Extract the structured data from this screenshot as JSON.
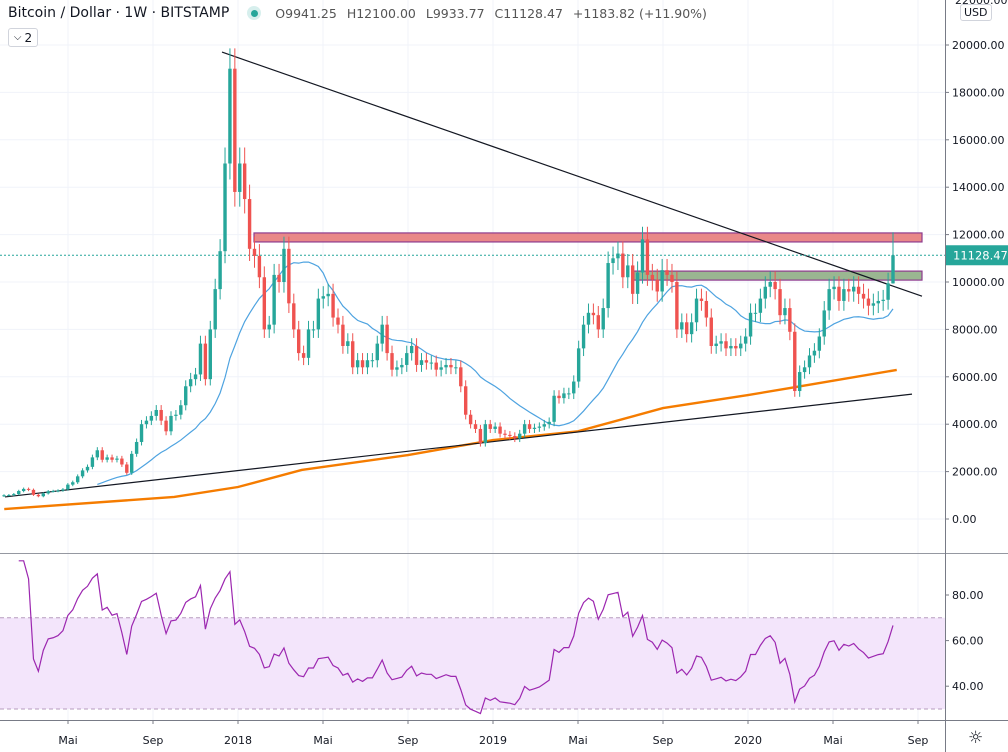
{
  "header": {
    "symbol_title": "Bitcoin / Dollar · 1W · BITSTAMP",
    "status_color": "#26a69a",
    "ohlc": {
      "open_label": "O",
      "open": "9941.25",
      "high_label": "H",
      "high": "12100.00",
      "low_label": "L",
      "low": "9933.77",
      "close_label": "C",
      "close": "11128.47",
      "change": "+1183.82 (+11.90%)"
    },
    "indicators_toggle": "2"
  },
  "price_axis": {
    "currency": "USD",
    "current_price_label": "11128.47",
    "top_partial_label": "22000.00"
  },
  "settings_icon": "sun-icon",
  "colors": {
    "up": "#26a69a",
    "down": "#ef5350",
    "sma": "#4ea3e0",
    "ma_long": "#f57c00",
    "trendline": "#131722",
    "resistance_zone": "#e57373",
    "support_zone": "#8fae85",
    "rsi": "#9c27b0",
    "rsi_band": "#f3e5fb"
  },
  "chart_data": [
    {
      "type": "candlestick",
      "interval": "1W",
      "ylim": [
        -800,
        22000
      ],
      "grid": true,
      "y_ticks": [
        "0.00",
        "2000.00",
        "4000.00",
        "6000.00",
        "8000.00",
        "10000.00",
        "12000.00",
        "14000.00",
        "16000.00",
        "18000.00",
        "20000.00"
      ],
      "x_ticks": [
        {
          "label": "Mai",
          "date": "2017-05"
        },
        {
          "label": "Sep",
          "date": "2017-09"
        },
        {
          "label": "2018",
          "date": "2018-01"
        },
        {
          "label": "Mai",
          "date": "2018-05"
        },
        {
          "label": "Sep",
          "date": "2018-09"
        },
        {
          "label": "2019",
          "date": "2019-01"
        },
        {
          "label": "Mai",
          "date": "2019-05"
        },
        {
          "label": "Sep",
          "date": "2019-09"
        },
        {
          "label": "2020",
          "date": "2020-01"
        },
        {
          "label": "Mai",
          "date": "2020-05"
        },
        {
          "label": "Sep",
          "date": "2020-09"
        }
      ],
      "weekly_closes": [
        1000,
        1010,
        1050,
        1180,
        1270,
        1230,
        1020,
        960,
        1080,
        1170,
        1180,
        1200,
        1250,
        1450,
        1550,
        1800,
        2050,
        2200,
        2600,
        2900,
        2500,
        2600,
        2500,
        2550,
        2300,
        1950,
        2750,
        3250,
        4000,
        4150,
        4350,
        4600,
        4150,
        3700,
        4350,
        4400,
        4800,
        5600,
        5900,
        6100,
        7400,
        5900,
        8000,
        9700,
        11300,
        15000,
        19000,
        13800,
        15000,
        13500,
        11400,
        11100,
        10200,
        8000,
        8200,
        10300,
        10000,
        11400,
        9100,
        8000,
        7000,
        6800,
        8000,
        8000,
        9300,
        9400,
        9500,
        8500,
        8200,
        7300,
        7500,
        6400,
        6700,
        6400,
        6700,
        6700,
        7400,
        8200,
        7000,
        6300,
        6400,
        6500,
        7000,
        7300,
        6500,
        6700,
        6600,
        6600,
        6300,
        6400,
        6500,
        6400,
        6400,
        5600,
        4400,
        4000,
        3800,
        3200,
        4000,
        3800,
        3900,
        3600,
        3550,
        3500,
        3400,
        3600,
        4000,
        3800,
        3850,
        3900,
        4000,
        4100,
        5200,
        5100,
        5300,
        5300,
        5800,
        7200,
        8200,
        8700,
        8600,
        8000,
        8900,
        10800,
        11000,
        11200,
        10200,
        10700,
        9500,
        10400,
        11800,
        10300,
        10100,
        9600,
        10500,
        10300,
        10000,
        8000,
        8300,
        7800,
        8300,
        9300,
        9200,
        8500,
        7300,
        7400,
        7500,
        7200,
        7300,
        7200,
        7400,
        7700,
        8700,
        8700,
        9300,
        9800,
        10000,
        9700,
        8600,
        8900,
        7900,
        5400,
        6200,
        6400,
        6900,
        7100,
        7700,
        8800,
        9700,
        9800,
        9200,
        9700,
        9600,
        9800,
        9500,
        9300,
        9000,
        9100,
        9200,
        9250,
        9945
      ],
      "last_candle": {
        "open": 9941.25,
        "high": 12100.0,
        "low": 9933.77,
        "close": 11128.47
      },
      "series": [
        {
          "kind": "sma",
          "period": 20
        },
        {
          "kind": "long_ma",
          "points": [
            {
              "date": "2017-02",
              "value": 420
            },
            {
              "date": "2017-10",
              "value": 930
            },
            {
              "date": "2018-01",
              "value": 1350
            },
            {
              "date": "2018-04",
              "value": 2070
            },
            {
              "date": "2018-09",
              "value": 2700
            },
            {
              "date": "2019-01",
              "value": 3330
            },
            {
              "date": "2019-05",
              "value": 3700
            },
            {
              "date": "2019-09",
              "value": 4680
            },
            {
              "date": "2020-01",
              "value": 5230
            },
            {
              "date": "2020-03",
              "value": 5530
            },
            {
              "date": "2020-08",
              "value": 6290
            }
          ]
        }
      ],
      "trendlines": [
        {
          "from": {
            "date": "2017-12",
            "value": 19700
          },
          "to": {
            "date": "2020-09",
            "value": 9400
          }
        },
        {
          "from": {
            "date": "2017-02",
            "value": 930
          },
          "to": {
            "date": "2020-09",
            "value": 5270
          }
        }
      ],
      "zones": [
        {
          "kind": "resistance",
          "from": 11690,
          "to": 12070,
          "start": "2018-01",
          "end": "2020-09"
        },
        {
          "kind": "support",
          "from": 10080,
          "to": 10460,
          "start": "2019-08",
          "end": "2020-09"
        }
      ],
      "current_price": 11128.47
    },
    {
      "type": "line",
      "indicator": "RSI",
      "period": 14,
      "ylim": [
        26,
        97
      ],
      "band": [
        30,
        70
      ],
      "y_ticks": [
        "80.00",
        "60.00",
        "40.00"
      ]
    }
  ]
}
